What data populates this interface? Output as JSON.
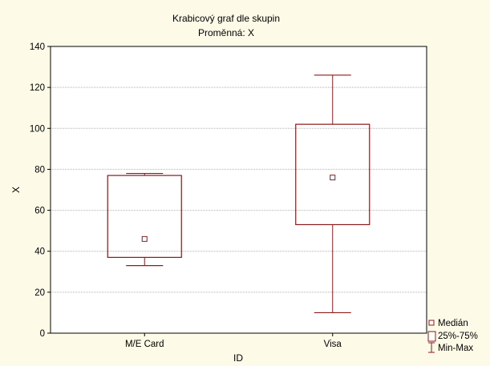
{
  "chart_data": {
    "type": "boxplot",
    "title": "Krabicový graf dle skupin",
    "subtitle": "Proměnná: X",
    "xlabel": "ID",
    "ylabel": "X",
    "ylim": [
      0,
      140
    ],
    "yticks": [
      0,
      20,
      40,
      60,
      80,
      100,
      120,
      140
    ],
    "grid": true,
    "legend_position": "bottom-right",
    "categories": [
      "M/E Card",
      "Visa"
    ],
    "boxes": [
      {
        "category": "M/E Card",
        "min": 33,
        "q1": 37,
        "median": 46,
        "q3": 77,
        "max": 78
      },
      {
        "category": "Visa",
        "min": 10,
        "q1": 53,
        "median": 76,
        "q3": 102,
        "max": 126
      }
    ],
    "legend": [
      "Medián",
      "25%-75%",
      "Min-Max"
    ],
    "colors": {
      "box": "#8b1a1a",
      "background": "#fdfbe8",
      "plot_background": "#ffffff",
      "grid": "#b0b0b0"
    }
  }
}
